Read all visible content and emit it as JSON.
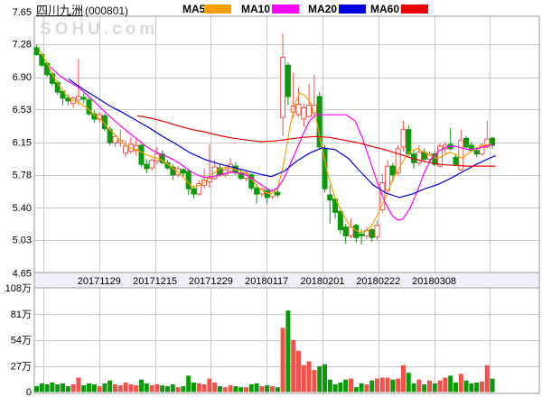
{
  "header": {
    "stock_name": "四川九洲",
    "stock_code": "(000801)",
    "legend": [
      {
        "label": "MA5",
        "color": "#ff9f00"
      },
      {
        "label": "MA10",
        "color": "#ff00ff"
      },
      {
        "label": "MA20",
        "color": "#0000e1"
      },
      {
        "label": "MA60",
        "color": "#ec0000"
      }
    ]
  },
  "watermark": "SOHU.com",
  "chart_data": {
    "type": "candlestick",
    "title": "四川九洲 (000801) daily K-line with volume",
    "x_labels": [
      "20171129",
      "20171215",
      "20171229",
      "20180117",
      "20180201",
      "20180222",
      "20180308"
    ],
    "price_axis": {
      "ticks": [
        "7.65",
        "7.28",
        "6.90",
        "6.53",
        "6.15",
        "5.78",
        "5.40",
        "5.03",
        "4.65"
      ],
      "min": 4.65,
      "max": 7.65
    },
    "volume_axis": {
      "ticks": [
        "108万",
        "81万",
        "54万",
        "27万",
        "0"
      ],
      "max_wan": 108
    },
    "candles_ohlcv": [
      [
        7.24,
        7.27,
        7.15,
        7.16,
        6
      ],
      [
        7.16,
        7.18,
        7.02,
        7.04,
        9
      ],
      [
        7.06,
        7.08,
        6.9,
        6.93,
        8
      ],
      [
        6.94,
        6.96,
        6.8,
        6.83,
        10
      ],
      [
        6.84,
        6.86,
        6.7,
        6.73,
        8
      ],
      [
        6.74,
        6.76,
        6.58,
        6.66,
        9
      ],
      [
        6.66,
        6.7,
        6.58,
        6.63,
        6
      ],
      [
        6.6,
        6.68,
        6.55,
        6.66,
        8
      ],
      [
        6.64,
        7.11,
        6.58,
        6.68,
        15
      ],
      [
        6.67,
        6.72,
        6.6,
        6.65,
        7
      ],
      [
        6.64,
        6.66,
        6.46,
        6.48,
        9
      ],
      [
        6.48,
        6.52,
        6.38,
        6.42,
        8
      ],
      [
        6.42,
        6.5,
        6.38,
        6.47,
        6
      ],
      [
        6.46,
        6.48,
        6.28,
        6.31,
        9
      ],
      [
        6.3,
        6.34,
        6.12,
        6.15,
        12
      ],
      [
        6.15,
        6.25,
        6.1,
        6.22,
        8
      ],
      [
        6.15,
        6.3,
        6.1,
        6.18,
        7
      ],
      [
        6.03,
        6.18,
        5.98,
        6.11,
        10
      ],
      [
        6.05,
        6.21,
        6.02,
        6.13,
        8
      ],
      [
        6.06,
        6.19,
        6.0,
        6.12,
        7
      ],
      [
        6.12,
        6.13,
        5.87,
        5.9,
        13
      ],
      [
        5.9,
        5.96,
        5.8,
        5.85,
        9
      ],
      [
        5.86,
        5.97,
        5.83,
        5.95,
        7
      ],
      [
        5.94,
        6.1,
        5.9,
        6.02,
        8
      ],
      [
        6.02,
        6.06,
        5.9,
        5.92,
        7
      ],
      [
        5.92,
        5.95,
        5.84,
        5.86,
        6
      ],
      [
        5.87,
        5.9,
        5.72,
        5.78,
        8
      ],
      [
        5.78,
        5.88,
        5.75,
        5.85,
        5
      ],
      [
        5.84,
        5.86,
        5.76,
        5.8,
        6
      ],
      [
        5.82,
        5.84,
        5.55,
        5.62,
        17
      ],
      [
        5.62,
        5.66,
        5.51,
        5.56,
        10
      ],
      [
        5.56,
        5.72,
        5.54,
        5.68,
        9
      ],
      [
        5.66,
        5.85,
        5.62,
        5.72,
        8
      ],
      [
        5.7,
        6.13,
        5.63,
        5.74,
        14
      ],
      [
        5.74,
        5.95,
        5.72,
        5.87,
        10
      ],
      [
        5.86,
        5.9,
        5.76,
        5.78,
        6
      ],
      [
        5.78,
        5.86,
        5.75,
        5.84,
        5
      ],
      [
        5.82,
        5.97,
        5.8,
        5.9,
        7
      ],
      [
        5.88,
        5.92,
        5.78,
        5.8,
        6
      ],
      [
        5.8,
        5.84,
        5.72,
        5.74,
        5
      ],
      [
        5.74,
        5.82,
        5.71,
        5.8,
        5
      ],
      [
        5.78,
        5.8,
        5.6,
        5.63,
        8
      ],
      [
        5.63,
        5.68,
        5.45,
        5.56,
        9
      ],
      [
        5.56,
        5.64,
        5.52,
        5.62,
        6
      ],
      [
        5.6,
        5.63,
        5.44,
        5.52,
        7
      ],
      [
        5.53,
        5.62,
        5.5,
        5.6,
        6
      ],
      [
        5.58,
        5.62,
        5.52,
        5.55,
        5
      ],
      [
        6.44,
        7.4,
        6.23,
        7.13,
        67
      ],
      [
        7.04,
        7.07,
        6.58,
        6.68,
        85
      ],
      [
        6.5,
        6.95,
        6.43,
        6.57,
        54
      ],
      [
        6.47,
        6.78,
        6.45,
        6.59,
        43
      ],
      [
        6.42,
        6.6,
        6.33,
        6.55,
        28
      ],
      [
        6.45,
        6.82,
        6.44,
        6.58,
        32
      ],
      [
        6.49,
        6.93,
        6.47,
        6.58,
        23
      ],
      [
        6.68,
        6.73,
        6.08,
        6.1,
        27
      ],
      [
        6.08,
        6.12,
        5.58,
        5.62,
        29
      ],
      [
        5.55,
        5.66,
        5.22,
        5.49,
        13
      ],
      [
        5.5,
        5.52,
        5.28,
        5.35,
        8
      ],
      [
        5.36,
        5.4,
        5.1,
        5.15,
        10
      ],
      [
        5.18,
        5.22,
        4.99,
        5.08,
        13
      ],
      [
        5.08,
        5.28,
        5.05,
        5.18,
        14
      ],
      [
        5.2,
        5.22,
        5.0,
        5.06,
        5
      ],
      [
        5.1,
        5.16,
        4.98,
        5.08,
        9
      ],
      [
        5.08,
        5.18,
        5.04,
        5.14,
        8
      ],
      [
        5.15,
        5.17,
        5.01,
        5.06,
        12
      ],
      [
        5.07,
        5.26,
        5.03,
        5.2,
        14
      ],
      [
        5.38,
        5.79,
        5.35,
        5.69,
        15
      ],
      [
        5.6,
        5.95,
        5.58,
        5.88,
        15
      ],
      [
        5.88,
        5.92,
        5.7,
        5.78,
        13
      ],
      [
        5.8,
        6.12,
        5.78,
        6.08,
        14
      ],
      [
        6.1,
        6.4,
        6.05,
        6.3,
        28
      ],
      [
        6.3,
        6.35,
        6.0,
        6.02,
        20
      ],
      [
        6.02,
        6.06,
        5.85,
        5.92,
        9
      ],
      [
        5.92,
        6.12,
        5.88,
        6.04,
        13
      ],
      [
        6.04,
        6.08,
        5.94,
        5.96,
        8
      ],
      [
        5.96,
        6.05,
        5.92,
        6.02,
        12
      ],
      [
        6.02,
        6.06,
        5.88,
        5.9,
        9
      ],
      [
        5.88,
        6.14,
        5.86,
        6.11,
        12
      ],
      [
        6.08,
        6.16,
        6.02,
        6.12,
        15
      ],
      [
        6.13,
        6.32,
        6.06,
        6.08,
        17
      ],
      [
        5.98,
        6.02,
        5.88,
        5.9,
        10
      ],
      [
        5.84,
        6.3,
        5.82,
        6.18,
        19
      ],
      [
        6.2,
        6.23,
        6.08,
        6.1,
        12
      ],
      [
        6.12,
        6.16,
        6.04,
        6.06,
        9
      ],
      [
        6.06,
        6.1,
        5.98,
        6.02,
        10
      ],
      [
        6.02,
        6.14,
        6.0,
        6.12,
        11
      ],
      [
        6.1,
        6.4,
        6.08,
        6.19,
        28
      ],
      [
        6.2,
        6.22,
        6.08,
        6.12,
        14
      ]
    ],
    "ma_lines": {
      "MA5": [
        [
          0.5,
          7.22
        ],
        [
          2.1,
          7.05
        ],
        [
          3.1,
          6.92
        ],
        [
          4.4,
          6.8
        ],
        [
          5.6,
          6.7
        ],
        [
          7,
          6.63
        ],
        [
          8.4,
          6.6
        ],
        [
          9.6,
          6.55
        ],
        [
          11,
          6.47
        ],
        [
          12.2,
          6.42
        ],
        [
          13.6,
          6.32
        ],
        [
          15,
          6.24
        ],
        [
          16.3,
          6.15
        ],
        [
          17.7,
          6.09
        ],
        [
          19.2,
          6.07
        ],
        [
          20.6,
          6.02
        ],
        [
          21.9,
          5.99
        ],
        [
          23.1,
          5.97
        ],
        [
          24.5,
          5.93
        ],
        [
          25.9,
          5.86
        ],
        [
          27.1,
          5.81
        ],
        [
          28.5,
          5.72
        ],
        [
          29.7,
          5.64
        ],
        [
          31.1,
          5.66
        ],
        [
          32.3,
          5.71
        ],
        [
          33.7,
          5.79
        ],
        [
          35,
          5.85
        ],
        [
          36.2,
          5.87
        ],
        [
          37.4,
          5.85
        ],
        [
          38.6,
          5.83
        ],
        [
          39.9,
          5.8
        ],
        [
          41.1,
          5.73
        ],
        [
          42.3,
          5.64
        ],
        [
          43.5,
          5.58
        ],
        [
          44.8,
          5.56
        ],
        [
          46,
          5.62
        ],
        [
          47.2,
          5.92
        ],
        [
          48.4,
          6.35
        ],
        [
          49.5,
          6.62
        ],
        [
          50.2,
          6.72
        ],
        [
          51.2,
          6.69
        ],
        [
          52.4,
          6.6
        ],
        [
          53.5,
          6.38
        ],
        [
          54.5,
          6.08
        ],
        [
          55.6,
          5.78
        ],
        [
          56.8,
          5.55
        ],
        [
          58,
          5.38
        ],
        [
          59.3,
          5.24
        ],
        [
          60.5,
          5.16
        ],
        [
          61.7,
          5.12
        ],
        [
          62.9,
          5.13
        ],
        [
          64.2,
          5.22
        ],
        [
          65.4,
          5.36
        ],
        [
          66.6,
          5.52
        ],
        [
          67.8,
          5.7
        ],
        [
          69.1,
          5.85
        ],
        [
          70.3,
          5.97
        ],
        [
          71.5,
          6.06
        ],
        [
          72.7,
          6.08
        ],
        [
          74,
          6.04
        ],
        [
          75.2,
          6.0
        ],
        [
          76.4,
          5.97
        ],
        [
          77.6,
          6.0
        ],
        [
          78.8,
          6.04
        ],
        [
          80.1,
          6.01
        ],
        [
          81.3,
          5.97
        ],
        [
          82.5,
          6.03
        ],
        [
          83.7,
          6.08
        ],
        [
          85,
          6.11
        ],
        [
          86.2,
          6.13
        ],
        [
          87,
          6.13
        ]
      ],
      "MA10": [
        [
          2.6,
          7.02
        ],
        [
          4.4,
          6.92
        ],
        [
          6.1,
          6.85
        ],
        [
          7.9,
          6.79
        ],
        [
          9.6,
          6.7
        ],
        [
          11.4,
          6.6
        ],
        [
          13.1,
          6.5
        ],
        [
          14.9,
          6.4
        ],
        [
          16.3,
          6.33
        ],
        [
          17.7,
          6.26
        ],
        [
          19.2,
          6.19
        ],
        [
          20.6,
          6.12
        ],
        [
          21.9,
          6.07
        ],
        [
          23.1,
          6.03
        ],
        [
          24.5,
          6.0
        ],
        [
          25.9,
          5.96
        ],
        [
          27.1,
          5.92
        ],
        [
          28.5,
          5.86
        ],
        [
          29.7,
          5.81
        ],
        [
          31.1,
          5.77
        ],
        [
          32.3,
          5.75
        ],
        [
          33.7,
          5.76
        ],
        [
          35,
          5.78
        ],
        [
          36.2,
          5.8
        ],
        [
          37.4,
          5.81
        ],
        [
          38.6,
          5.8
        ],
        [
          39.9,
          5.78
        ],
        [
          41.1,
          5.74
        ],
        [
          42.3,
          5.69
        ],
        [
          43.5,
          5.64
        ],
        [
          44.8,
          5.59
        ],
        [
          46,
          5.63
        ],
        [
          47.2,
          5.74
        ],
        [
          48.4,
          5.9
        ],
        [
          49.7,
          6.08
        ],
        [
          50.9,
          6.25
        ],
        [
          52.1,
          6.4
        ],
        [
          53.3,
          6.47
        ],
        [
          54.5,
          6.47
        ],
        [
          56.8,
          6.47
        ],
        [
          59.1,
          6.47
        ],
        [
          60.8,
          6.4
        ],
        [
          62.2,
          6.2
        ],
        [
          63.6,
          5.95
        ],
        [
          65,
          5.7
        ],
        [
          66.4,
          5.48
        ],
        [
          67.8,
          5.32
        ],
        [
          68.9,
          5.26
        ],
        [
          69.9,
          5.27
        ],
        [
          71.3,
          5.4
        ],
        [
          72.7,
          5.6
        ],
        [
          74.1,
          5.82
        ],
        [
          75.5,
          5.98
        ],
        [
          76.9,
          6.06
        ],
        [
          78.3,
          6.1
        ],
        [
          79.7,
          6.11
        ],
        [
          81.1,
          6.09
        ],
        [
          82.5,
          6.07
        ],
        [
          83.9,
          6.08
        ],
        [
          85.3,
          6.1
        ],
        [
          87,
          6.13
        ]
      ],
      "MA20": [
        [
          6.1,
          6.88
        ],
        [
          8.7,
          6.77
        ],
        [
          11.4,
          6.67
        ],
        [
          14,
          6.57
        ],
        [
          16.3,
          6.5
        ],
        [
          18.9,
          6.41
        ],
        [
          21.5,
          6.32
        ],
        [
          24.1,
          6.22
        ],
        [
          26.7,
          6.13
        ],
        [
          29.4,
          6.03
        ],
        [
          32,
          5.96
        ],
        [
          34.6,
          5.91
        ],
        [
          37.2,
          5.87
        ],
        [
          39.9,
          5.83
        ],
        [
          42.5,
          5.79
        ],
        [
          44.8,
          5.76
        ],
        [
          47.2,
          5.82
        ],
        [
          49.7,
          5.94
        ],
        [
          52.1,
          6.03
        ],
        [
          54.5,
          6.09
        ],
        [
          57,
          6.07
        ],
        [
          59.5,
          5.97
        ],
        [
          61.9,
          5.81
        ],
        [
          64.3,
          5.66
        ],
        [
          66.8,
          5.57
        ],
        [
          69.2,
          5.52
        ],
        [
          71.7,
          5.56
        ],
        [
          74.1,
          5.62
        ],
        [
          76.6,
          5.67
        ],
        [
          79,
          5.74
        ],
        [
          81.5,
          5.82
        ],
        [
          83.9,
          5.9
        ],
        [
          86.4,
          5.97
        ],
        [
          87.6,
          6.0
        ]
      ],
      "MA60": [
        [
          19.2,
          6.46
        ],
        [
          21.9,
          6.43
        ],
        [
          24.5,
          6.39
        ],
        [
          27.1,
          6.34
        ],
        [
          29.7,
          6.3
        ],
        [
          32.3,
          6.27
        ],
        [
          35,
          6.23
        ],
        [
          37.6,
          6.2
        ],
        [
          40.2,
          6.18
        ],
        [
          42.8,
          6.16
        ],
        [
          45.5,
          6.17
        ],
        [
          48.1,
          6.19
        ],
        [
          50.7,
          6.21
        ],
        [
          53.3,
          6.22
        ],
        [
          55.9,
          6.21
        ],
        [
          58.6,
          6.18
        ],
        [
          61.2,
          6.15
        ],
        [
          63.8,
          6.11
        ],
        [
          66.4,
          6.07
        ],
        [
          69.1,
          6.02
        ],
        [
          71.7,
          5.97
        ],
        [
          74.3,
          5.93
        ],
        [
          76.9,
          5.9
        ],
        [
          79.5,
          5.89
        ],
        [
          82.2,
          5.88
        ],
        [
          84.8,
          5.88
        ],
        [
          87.6,
          5.88
        ]
      ]
    },
    "colors": {
      "up": "#f4514d",
      "down": "#0a9a0a",
      "ma5": "#ff9f00",
      "ma10": "#ff00ff",
      "ma20": "#0000e1",
      "ma60": "#ec0000",
      "grid": "#c9c9c9",
      "frame": "#9a9a9a",
      "band_bg": "#f0f0fa",
      "text": "#000000",
      "watermark": "#dadada"
    },
    "legend_position": "top",
    "grid": true
  }
}
